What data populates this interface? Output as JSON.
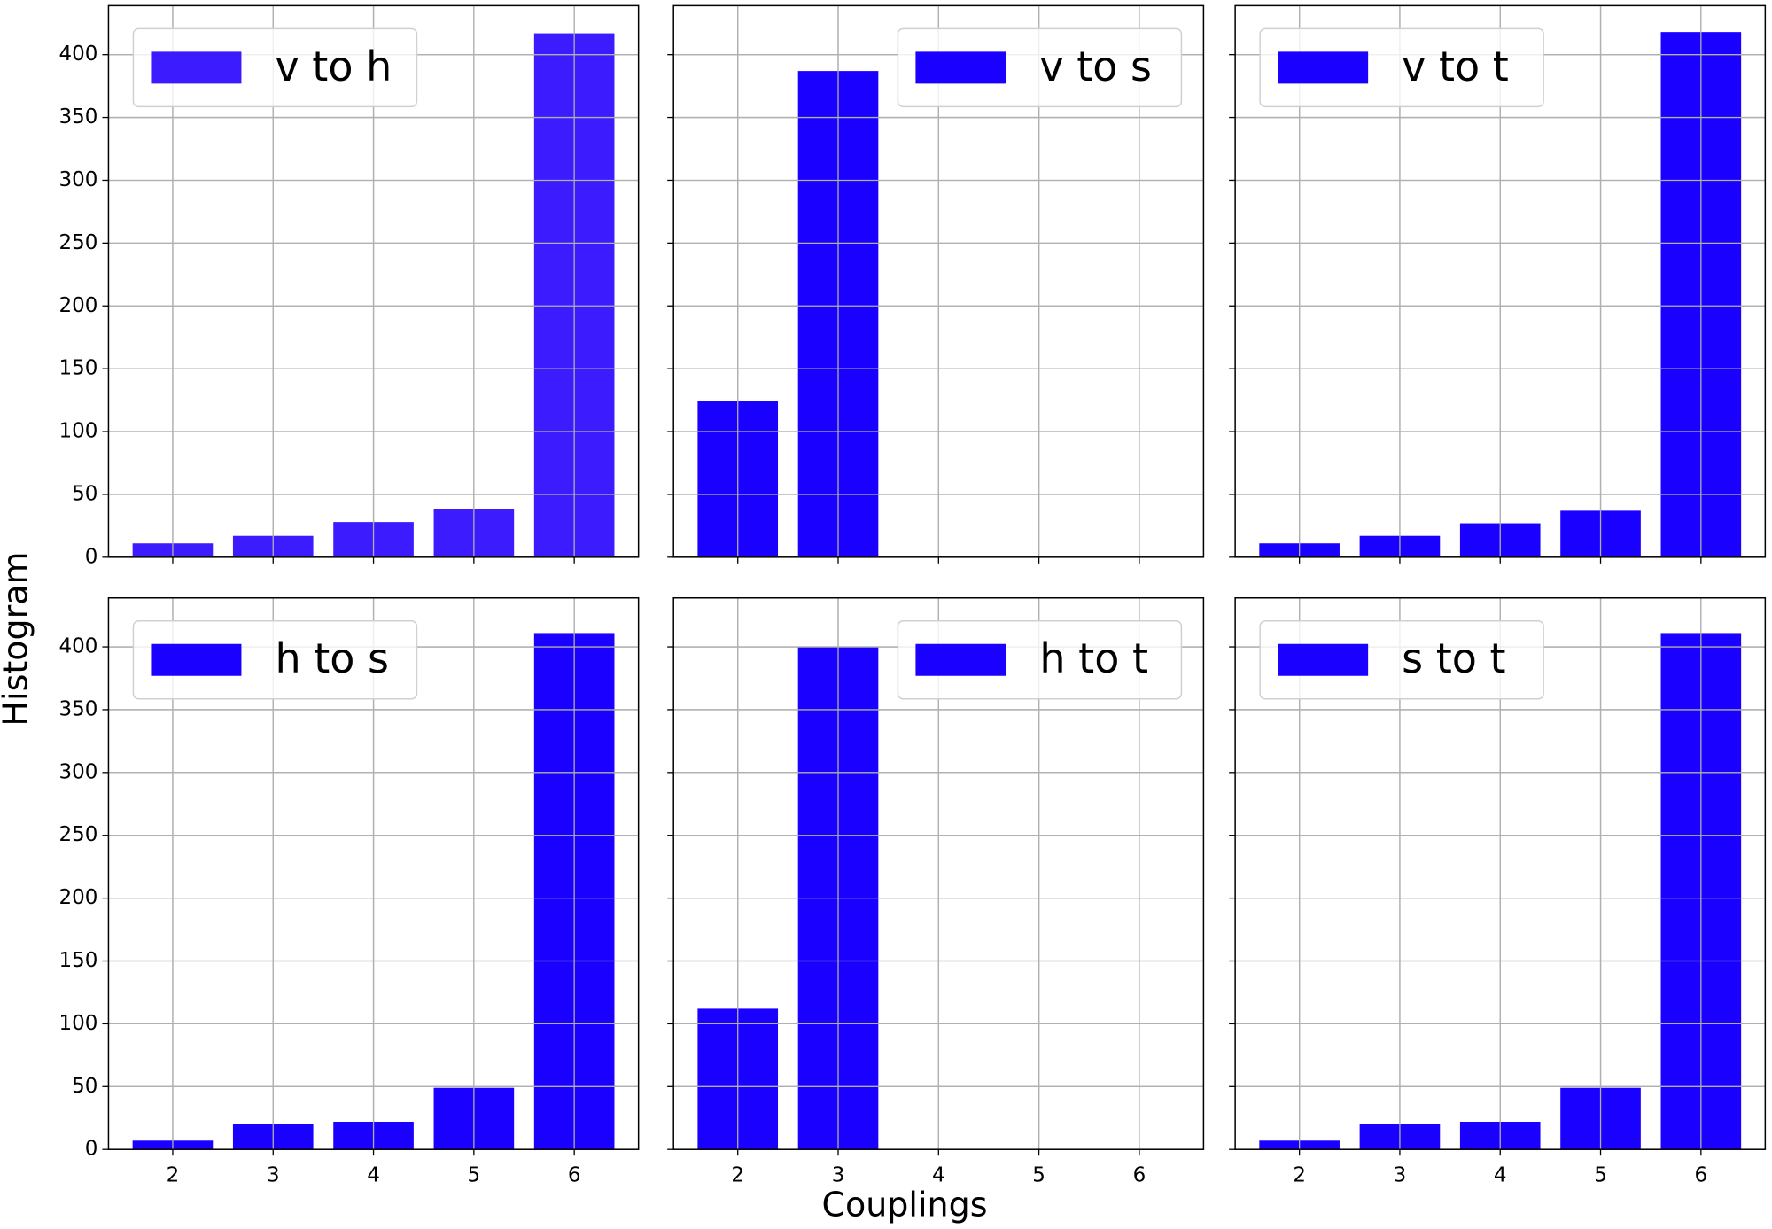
{
  "ylabel": "Histogram",
  "xlabel": "Couplings",
  "chart_data": [
    {
      "type": "bar",
      "x": [
        2,
        3,
        4,
        5,
        6
      ],
      "series": [
        {
          "name": "v to h",
          "color": "#3c1cff",
          "values": [
            11,
            17,
            28,
            38,
            417
          ]
        }
      ],
      "xlim": [
        1.36,
        6.64
      ],
      "ylim": [
        0,
        439
      ],
      "xticks": [
        2,
        3,
        4,
        5,
        6
      ],
      "yticks": [
        0,
        50,
        100,
        150,
        200,
        250,
        300,
        350,
        400
      ],
      "grid": true,
      "legend": "upper left"
    },
    {
      "type": "bar",
      "x": [
        2,
        3,
        4,
        5,
        6
      ],
      "series": [
        {
          "name": "v to s",
          "color": "#1a00ff",
          "values": [
            124,
            387,
            0,
            0,
            0
          ]
        }
      ],
      "xlim": [
        1.36,
        6.64
      ],
      "ylim": [
        0,
        439
      ],
      "xticks": [
        2,
        3,
        4,
        5,
        6
      ],
      "yticks": [
        0,
        50,
        100,
        150,
        200,
        250,
        300,
        350,
        400
      ],
      "grid": true,
      "legend": "upper right"
    },
    {
      "type": "bar",
      "x": [
        2,
        3,
        4,
        5,
        6
      ],
      "series": [
        {
          "name": "v to t",
          "color": "#1a00ff",
          "values": [
            11,
            17,
            27,
            37,
            418
          ]
        }
      ],
      "xlim": [
        1.36,
        6.64
      ],
      "ylim": [
        0,
        439
      ],
      "xticks": [
        2,
        3,
        4,
        5,
        6
      ],
      "yticks": [
        0,
        50,
        100,
        150,
        200,
        250,
        300,
        350,
        400
      ],
      "grid": true,
      "legend": "upper left"
    },
    {
      "type": "bar",
      "x": [
        2,
        3,
        4,
        5,
        6
      ],
      "series": [
        {
          "name": "h to s",
          "color": "#1a00ff",
          "values": [
            7,
            20,
            22,
            49,
            411
          ]
        }
      ],
      "xlim": [
        1.36,
        6.64
      ],
      "ylim": [
        0,
        439
      ],
      "xticks": [
        2,
        3,
        4,
        5,
        6
      ],
      "yticks": [
        0,
        50,
        100,
        150,
        200,
        250,
        300,
        350,
        400
      ],
      "grid": true,
      "legend": "upper left"
    },
    {
      "type": "bar",
      "x": [
        2,
        3,
        4,
        5,
        6
      ],
      "series": [
        {
          "name": "h to t",
          "color": "#1a00ff",
          "values": [
            112,
            400,
            0,
            0,
            0
          ]
        }
      ],
      "xlim": [
        1.36,
        6.64
      ],
      "ylim": [
        0,
        439
      ],
      "xticks": [
        2,
        3,
        4,
        5,
        6
      ],
      "yticks": [
        0,
        50,
        100,
        150,
        200,
        250,
        300,
        350,
        400
      ],
      "grid": true,
      "legend": "upper right"
    },
    {
      "type": "bar",
      "x": [
        2,
        3,
        4,
        5,
        6
      ],
      "series": [
        {
          "name": "s to t",
          "color": "#1a00ff",
          "values": [
            7,
            20,
            22,
            49,
            411
          ]
        }
      ],
      "xlim": [
        1.36,
        6.64
      ],
      "ylim": [
        0,
        439
      ],
      "xticks": [
        2,
        3,
        4,
        5,
        6
      ],
      "yticks": [
        0,
        50,
        100,
        150,
        200,
        250,
        300,
        350,
        400
      ],
      "grid": true,
      "legend": "upper left"
    }
  ]
}
